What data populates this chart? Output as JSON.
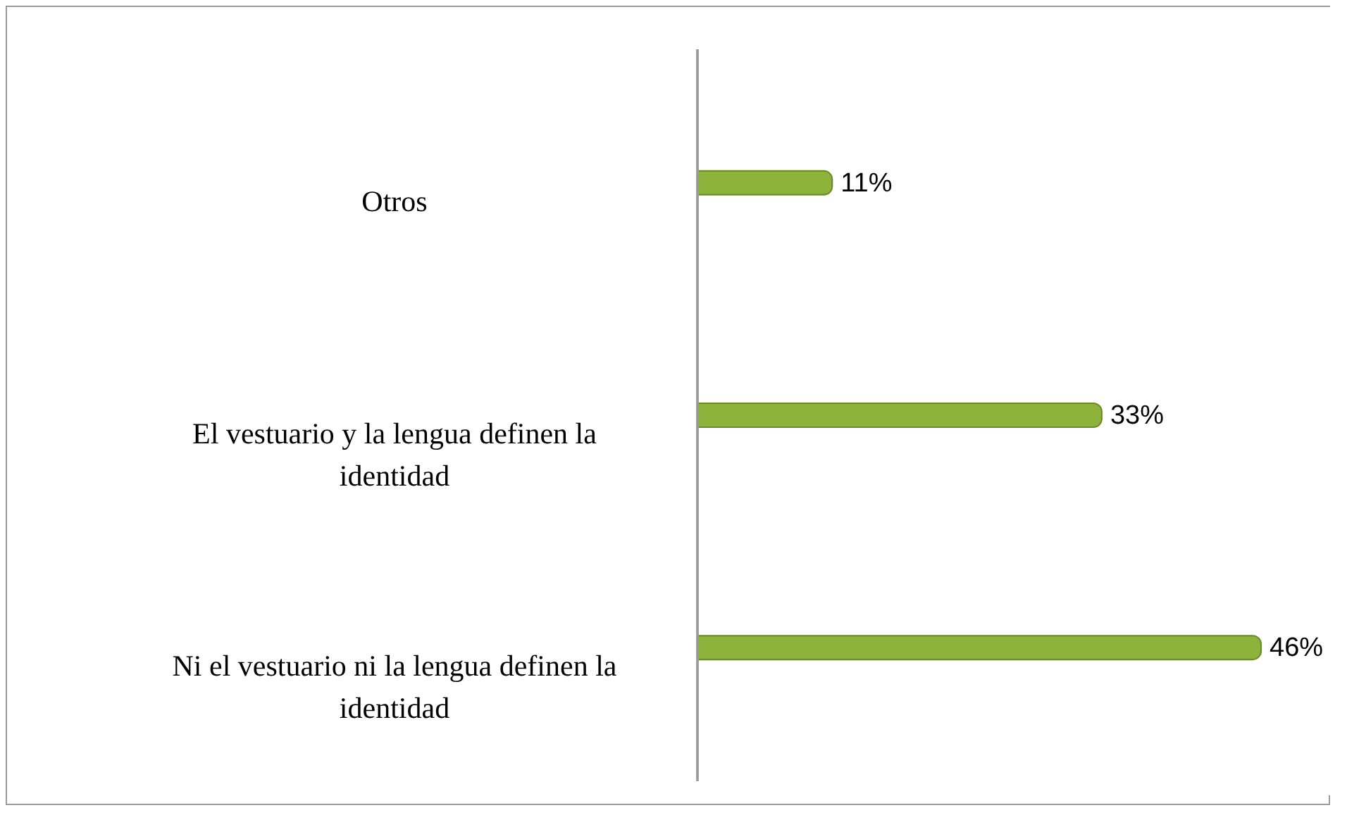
{
  "chart_data": {
    "type": "bar",
    "orientation": "horizontal",
    "categories": [
      "Otros",
      "El vestuario y la lengua definen la identidad",
      "Ni el vestuario ni la lengua definen la identidad"
    ],
    "values": [
      11,
      33,
      46
    ],
    "value_labels": [
      "11%",
      "33%",
      "46%"
    ],
    "color": "#8db33a"
  }
}
